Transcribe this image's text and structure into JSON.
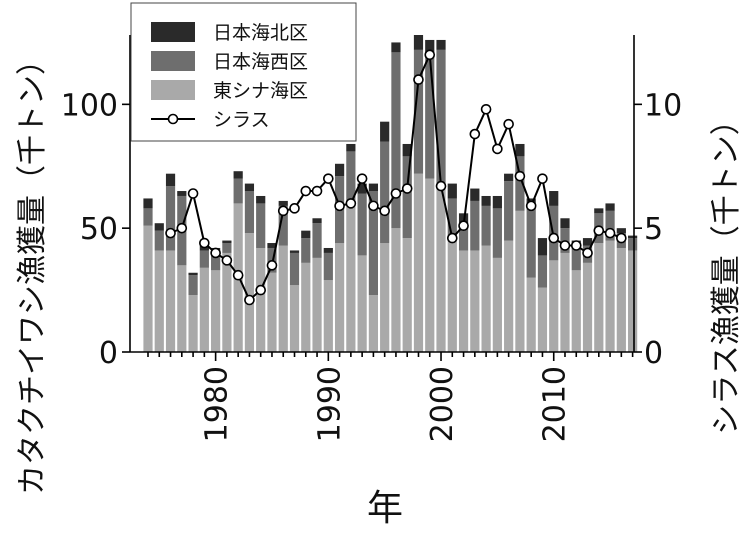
{
  "chart_data": {
    "type": "bar",
    "stacked": true,
    "xlabel": "年",
    "ylabel_left": "カタクチイワシ漁獲量（千トン）",
    "ylabel_right": "シラス漁獲量（千トン）",
    "years": [
      1974,
      1975,
      1976,
      1977,
      1978,
      1979,
      1980,
      1981,
      1982,
      1983,
      1984,
      1985,
      1986,
      1987,
      1988,
      1989,
      1990,
      1991,
      1992,
      1993,
      1994,
      1995,
      1996,
      1997,
      1998,
      1999,
      2000,
      2001,
      2002,
      2003,
      2004,
      2005,
      2006,
      2007,
      2008,
      2009,
      2010,
      2011,
      2012,
      2013,
      2014,
      2015,
      2016,
      2017
    ],
    "x_ticks": [
      1980,
      1990,
      2000,
      2010
    ],
    "y_left_ticks": [
      0,
      50,
      100
    ],
    "y_left_range": [
      0,
      128
    ],
    "y_right_ticks": [
      0,
      5,
      10
    ],
    "y_right_range": [
      0,
      12.8
    ],
    "series": [
      {
        "name": "日本海北区",
        "color": "#2a2a2a",
        "values": [
          4,
          3,
          5,
          2,
          1,
          2,
          2,
          1,
          3,
          3,
          3,
          2,
          2,
          1,
          3,
          2,
          2,
          5,
          3,
          4,
          3,
          8,
          4,
          5,
          6,
          6,
          4,
          6,
          5,
          5,
          4,
          5,
          3,
          5,
          4,
          7,
          6,
          4,
          2,
          3,
          2,
          3,
          2,
          1
        ]
      },
      {
        "name": "日本海西区",
        "color": "#6e6e6e",
        "values": [
          7,
          8,
          26,
          28,
          8,
          7,
          7,
          4,
          10,
          17,
          18,
          10,
          16,
          13,
          10,
          14,
          11,
          27,
          22,
          25,
          42,
          41,
          71,
          33,
          50,
          50,
          55,
          16,
          10,
          20,
          16,
          20,
          24,
          22,
          28,
          13,
          22,
          10,
          10,
          7,
          12,
          12,
          6,
          5
        ]
      },
      {
        "name": "東シナ海区",
        "color": "#a9a9a9",
        "values": [
          51,
          41,
          41,
          35,
          23,
          34,
          33,
          40,
          60,
          48,
          42,
          32,
          43,
          27,
          36,
          38,
          29,
          44,
          59,
          39,
          23,
          44,
          50,
          46,
          72,
          70,
          67,
          46,
          41,
          41,
          43,
          38,
          45,
          57,
          30,
          26,
          37,
          40,
          33,
          36,
          44,
          45,
          42,
          41
        ]
      },
      {
        "name": "シラス",
        "color": "#000000",
        "values": [
          null,
          null,
          4.8,
          5,
          6.4,
          4.4,
          4,
          3.7,
          3.1,
          2.1,
          2.5,
          3.5,
          5.7,
          5.8,
          6.5,
          6.5,
          7,
          5.9,
          6,
          7,
          5.9,
          5.7,
          6.4,
          6.6,
          11,
          12,
          6.7,
          4.6,
          5.1,
          8.8,
          9.8,
          8.2,
          9.2,
          7.1,
          5.9,
          7,
          4.6,
          4.3,
          4.3,
          4,
          4.9,
          4.8,
          4.6,
          null
        ]
      }
    ],
    "legend_position": "top-left",
    "grid": false
  }
}
